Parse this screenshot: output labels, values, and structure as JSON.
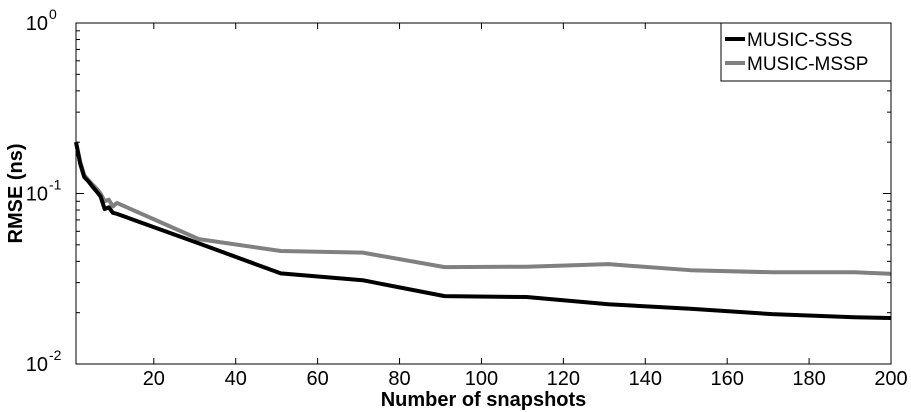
{
  "chart_data": {
    "type": "line",
    "title": "",
    "xlabel": "Number of snapshots",
    "ylabel": "RMSE (ns)",
    "xlim": [
      1,
      200
    ],
    "ylim": [
      0.01,
      1
    ],
    "yscale": "log",
    "grid": false,
    "legend_position": "top-right",
    "x_ticks": [
      {
        "value": 20,
        "label": "20"
      },
      {
        "value": 40,
        "label": "40"
      },
      {
        "value": 60,
        "label": "60"
      },
      {
        "value": 80,
        "label": "80"
      },
      {
        "value": 100,
        "label": "100"
      },
      {
        "value": 120,
        "label": "120"
      },
      {
        "value": 140,
        "label": "140"
      },
      {
        "value": 160,
        "label": "160"
      },
      {
        "value": 180,
        "label": "180"
      },
      {
        "value": 200,
        "label": "200"
      }
    ],
    "y_ticks": [
      {
        "value": 0.01,
        "base": "10",
        "exp": "-2"
      },
      {
        "value": 0.1,
        "base": "10",
        "exp": "-1"
      },
      {
        "value": 1,
        "base": "10",
        "exp": "0"
      }
    ],
    "series": [
      {
        "name": "MUSIC-SSS",
        "color": "#000000",
        "x": [
          1,
          2,
          3,
          4,
          5,
          6,
          7,
          8,
          9,
          10,
          11,
          31,
          51,
          71,
          91,
          111,
          131,
          151,
          171,
          191,
          200
        ],
        "y": [
          0.2,
          0.15,
          0.125,
          0.118,
          0.11,
          0.103,
          0.096,
          0.081,
          0.083,
          0.077,
          0.076,
          0.051,
          0.034,
          0.031,
          0.025,
          0.0247,
          0.0224,
          0.0211,
          0.0196,
          0.0188,
          0.0186
        ]
      },
      {
        "name": "MUSIC-MSSP",
        "color": "#808080",
        "x": [
          1,
          2,
          3,
          4,
          5,
          6,
          7,
          8,
          9,
          10,
          11,
          31,
          51,
          71,
          91,
          111,
          131,
          151,
          171,
          191,
          200
        ],
        "y": [
          0.2,
          0.155,
          0.128,
          0.12,
          0.113,
          0.107,
          0.1,
          0.09,
          0.092,
          0.084,
          0.088,
          0.054,
          0.046,
          0.045,
          0.037,
          0.0372,
          0.0385,
          0.0355,
          0.0345,
          0.0345,
          0.0338
        ]
      }
    ]
  }
}
